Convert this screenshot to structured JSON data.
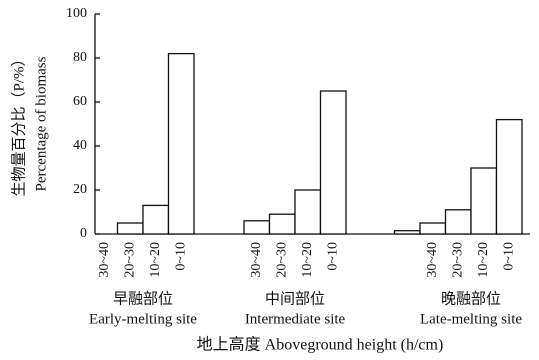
{
  "chart_data": {
    "type": "grouped_bar",
    "y_label": "生物量百分比（P/%）",
    "y_label_en": "Percentage of biomass",
    "x_label": "地上高度  Aboveground height (h/cm)",
    "ylim": [
      0,
      100
    ],
    "yticks": [
      0,
      20,
      40,
      60,
      80,
      100
    ],
    "color": "#ffffff",
    "edge_color": "#111111",
    "groups": [
      {
        "name": "早融部位",
        "name_en": "Early-melting site",
        "categories": [
          "30~40",
          "20~30",
          "10~20",
          "0~10"
        ],
        "values": [
          0,
          5,
          13,
          82
        ]
      },
      {
        "name": "中间部位",
        "name_en": "Intermediate site",
        "categories": [
          "30~40",
          "20~30",
          "10~20",
          "0~10"
        ],
        "values": [
          6,
          9,
          20,
          65
        ]
      },
      {
        "name": "晚融部位",
        "name_en": "Late-melting site",
        "categories": [
          null,
          "30~40",
          "20~30",
          "10~20",
          "0~10"
        ],
        "values": [
          1.5,
          5,
          11,
          30,
          52
        ]
      }
    ]
  }
}
